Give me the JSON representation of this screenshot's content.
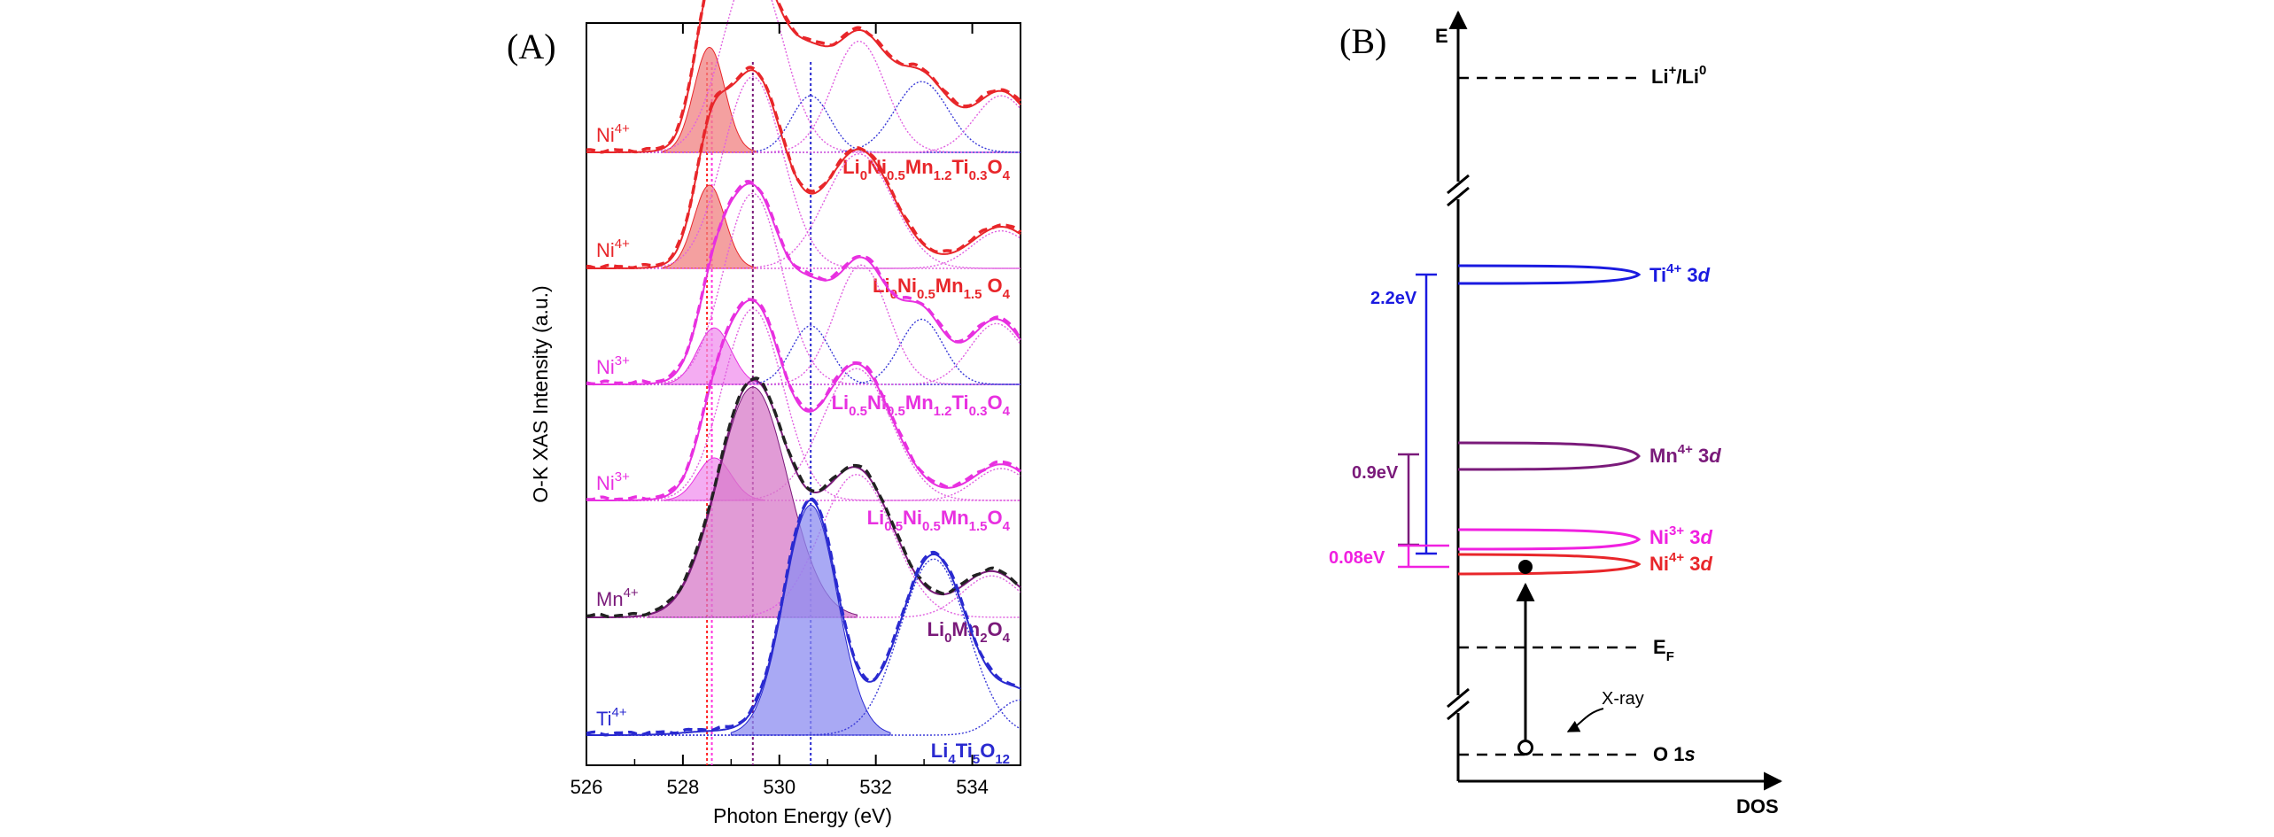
{
  "chart_data": [
    {
      "type": "line",
      "panel_label": "(A)",
      "xlabel": "Photon Energy (eV)",
      "ylabel": "O-K XAS Intensity (a.u.)",
      "xlim": [
        526,
        535
      ],
      "x_ticks": [
        526,
        528,
        530,
        532,
        534
      ],
      "reference_lines_eV": [
        {
          "x": 528.5,
          "color": "#ff2020"
        },
        {
          "x": 528.6,
          "color": "#ff33dd"
        },
        {
          "x": 529.45,
          "color": "#7a1a7a"
        },
        {
          "x": 530.65,
          "color": "#2a2ad0"
        }
      ],
      "series": [
        {
          "name": "Li0Ni0.5Mn1.2Ti0.3O4",
          "label_segments": [
            [
              "Li",
              ""
            ],
            [
              "0",
              "sub"
            ],
            [
              "Ni",
              ""
            ],
            [
              "0.5",
              "sub"
            ],
            [
              "Mn",
              ""
            ],
            [
              "1.2",
              "sub"
            ],
            [
              "Ti",
              ""
            ],
            [
              "0.3",
              "sub"
            ],
            [
              "O",
              ""
            ],
            [
              "4",
              "sub"
            ]
          ],
          "ion": "Ni",
          "ion_charge": "4+",
          "color": "#e8262a",
          "fill": "#f08080",
          "baseline": 0,
          "peaks": [
            {
              "center": 528.55,
              "amp": 0.52,
              "width": 0.32,
              "color": "#e8262a",
              "filled": true
            },
            {
              "center": 529.45,
              "amp": 0.92,
              "width": 0.62,
              "color": "#e060e0"
            },
            {
              "center": 530.65,
              "amp": 0.28,
              "width": 0.4,
              "color": "#3a3ad8"
            },
            {
              "center": 531.65,
              "amp": 0.55,
              "width": 0.55,
              "color": "#e060e0"
            },
            {
              "center": 532.95,
              "amp": 0.35,
              "width": 0.55,
              "color": "#3a3ad8"
            },
            {
              "center": 534.6,
              "amp": 0.28,
              "width": 0.55,
              "color": "#e060e0"
            }
          ]
        },
        {
          "name": "Li0Ni0.5Mn1.5O4",
          "label_segments": [
            [
              "Li",
              ""
            ],
            [
              "0",
              "sub"
            ],
            [
              "Ni",
              ""
            ],
            [
              "0.5",
              "sub"
            ],
            [
              "Mn",
              ""
            ],
            [
              "1.5",
              "sub"
            ],
            [
              " O",
              ""
            ],
            [
              "4",
              "sub"
            ]
          ],
          "ion": "Ni",
          "ion_charge": "4+",
          "color": "#e8262a",
          "fill": "#f08080",
          "baseline": 0,
          "peaks": [
            {
              "center": 528.55,
              "amp": 0.4,
              "width": 0.32,
              "color": "#e8262a",
              "filled": true
            },
            {
              "center": 529.45,
              "amp": 0.92,
              "width": 0.62,
              "color": "#e060e0"
            },
            {
              "center": 531.65,
              "amp": 0.55,
              "width": 0.7,
              "color": "#e060e0"
            },
            {
              "center": 534.6,
              "amp": 0.18,
              "width": 0.6,
              "color": "#e060e0"
            }
          ]
        },
        {
          "name": "Li0.5Ni0.5Mn1.2Ti0.3O4",
          "label_segments": [
            [
              "Li",
              ""
            ],
            [
              "0.5",
              "sub"
            ],
            [
              "Ni",
              ""
            ],
            [
              "0.5",
              "sub"
            ],
            [
              "Mn",
              ""
            ],
            [
              "1.2",
              "sub"
            ],
            [
              "Ti",
              ""
            ],
            [
              "0.3",
              "sub"
            ],
            [
              "O",
              ""
            ],
            [
              "4",
              "sub"
            ]
          ],
          "ion": "Ni",
          "ion_charge": "3+",
          "color": "#e830e0",
          "fill": "#f090ee",
          "baseline": 0,
          "peaks": [
            {
              "center": 528.65,
              "amp": 0.26,
              "width": 0.35,
              "color": "#e830e0",
              "filled": true
            },
            {
              "center": 529.45,
              "amp": 0.88,
              "width": 0.6,
              "color": "#e060e0"
            },
            {
              "center": 530.65,
              "amp": 0.27,
              "width": 0.4,
              "color": "#3a3ad8"
            },
            {
              "center": 531.7,
              "amp": 0.55,
              "width": 0.55,
              "color": "#e060e0"
            },
            {
              "center": 532.95,
              "amp": 0.3,
              "width": 0.45,
              "color": "#3a3ad8"
            },
            {
              "center": 534.5,
              "amp": 0.28,
              "width": 0.55,
              "color": "#e060e0"
            }
          ]
        },
        {
          "name": "Li0.5Ni0.5Mn1.5O4",
          "label_segments": [
            [
              "Li",
              ""
            ],
            [
              "0.5",
              "sub"
            ],
            [
              "Ni",
              ""
            ],
            [
              "0.5",
              "sub"
            ],
            [
              "Mn",
              ""
            ],
            [
              "1.5",
              "sub"
            ],
            [
              "O",
              ""
            ],
            [
              "4",
              "sub"
            ]
          ],
          "ion": "Ni",
          "ion_charge": "3+",
          "color": "#e830e0",
          "fill": "#f090ee",
          "baseline": 0,
          "peaks": [
            {
              "center": 528.65,
              "amp": 0.2,
              "width": 0.35,
              "color": "#e830e0",
              "filled": true
            },
            {
              "center": 529.45,
              "amp": 0.9,
              "width": 0.62,
              "color": "#e060e0"
            },
            {
              "center": 531.6,
              "amp": 0.62,
              "width": 0.72,
              "color": "#e060e0"
            },
            {
              "center": 534.6,
              "amp": 0.15,
              "width": 0.55,
              "color": "#e060e0"
            }
          ]
        },
        {
          "name": "Li0Mn2O4",
          "label_segments": [
            [
              "Li",
              ""
            ],
            [
              "0",
              "sub"
            ],
            [
              "Mn",
              ""
            ],
            [
              "2",
              "sub"
            ],
            [
              "O",
              ""
            ],
            [
              "4",
              "sub"
            ]
          ],
          "ion": "Mn",
          "ion_charge": "4+",
          "color": "#7a1a7a",
          "fill": "#d77ac8",
          "baseline": 0,
          "peaks": [
            {
              "center": 529.45,
              "amp": 1.0,
              "width": 0.72,
              "color": "#7a1a7a",
              "filled": true
            },
            {
              "center": 531.6,
              "amp": 0.62,
              "width": 0.75,
              "color": "#e060e0"
            },
            {
              "center": 534.4,
              "amp": 0.18,
              "width": 0.6,
              "color": "#e060e0"
            }
          ]
        },
        {
          "name": "Li4Ti5O12",
          "label_segments": [
            [
              "Li",
              ""
            ],
            [
              "4",
              "sub"
            ],
            [
              "Ti",
              ""
            ],
            [
              "5",
              "sub"
            ],
            [
              "O",
              ""
            ],
            [
              "12",
              "sub"
            ]
          ],
          "ion": "Ti",
          "ion_charge": "4+",
          "color": "#2a2ad0",
          "fill": "#8c8cf0",
          "baseline": 0,
          "peaks": [
            {
              "center": 530.65,
              "amp": 0.98,
              "width": 0.55,
              "color": "#2a2ad0",
              "filled": true
            },
            {
              "center": 533.2,
              "amp": 0.75,
              "width": 0.7,
              "color": "#3a3ad8"
            },
            {
              "center": 535.0,
              "amp": 0.15,
              "width": 0.5,
              "color": "#3a3ad8"
            }
          ]
        }
      ]
    },
    {
      "type": "diagram",
      "panel_label": "(B)",
      "y_axis_label": "E",
      "x_axis_label": "DOS",
      "levels": [
        {
          "name": "Li+/Li0",
          "segments": [
            [
              "Li",
              ""
            ],
            [
              "+",
              "sup"
            ],
            [
              "/Li",
              ""
            ],
            [
              "0",
              "sup"
            ]
          ],
          "color": "#000000",
          "style": "dashed"
        },
        {
          "name": "Ti4+ 3d",
          "segments": [
            [
              "Ti",
              ""
            ],
            [
              "4+",
              "sup"
            ],
            [
              " 3",
              ""
            ],
            [
              "d",
              "italic"
            ]
          ],
          "color": "#1a1ae0",
          "style": "dos-peak"
        },
        {
          "name": "Mn4+ 3d",
          "segments": [
            [
              "Mn",
              ""
            ],
            [
              "4+",
              "sup"
            ],
            [
              " 3",
              ""
            ],
            [
              "d",
              "italic"
            ]
          ],
          "color": "#7a1a7a",
          "style": "dos-peak"
        },
        {
          "name": "Ni3+ 3d",
          "segments": [
            [
              "Ni",
              ""
            ],
            [
              "3+",
              "sup"
            ],
            [
              " 3",
              ""
            ],
            [
              "d",
              "italic"
            ]
          ],
          "color": "#f020e0",
          "style": "dos-peak"
        },
        {
          "name": "Ni4+ 3d",
          "segments": [
            [
              "Ni",
              ""
            ],
            [
              "4+",
              "sup"
            ],
            [
              " 3",
              ""
            ],
            [
              "d",
              "italic"
            ]
          ],
          "color": "#e8262a",
          "style": "dos-peak"
        },
        {
          "name": "EF",
          "segments": [
            [
              "E",
              ""
            ],
            [
              "F",
              "sub"
            ]
          ],
          "color": "#000000",
          "style": "dashed"
        },
        {
          "name": "O 1s",
          "segments": [
            [
              "O 1",
              ""
            ],
            [
              "s",
              "italic"
            ]
          ],
          "color": "#000000",
          "style": "dashed"
        }
      ],
      "gaps": [
        {
          "label": "2.2eV",
          "color": "#1a1ae0"
        },
        {
          "label": "0.9eV",
          "color": "#7a1a7a"
        },
        {
          "label": "0.08eV",
          "color": "#f020e0"
        }
      ],
      "annotation": "X-ray"
    }
  ]
}
